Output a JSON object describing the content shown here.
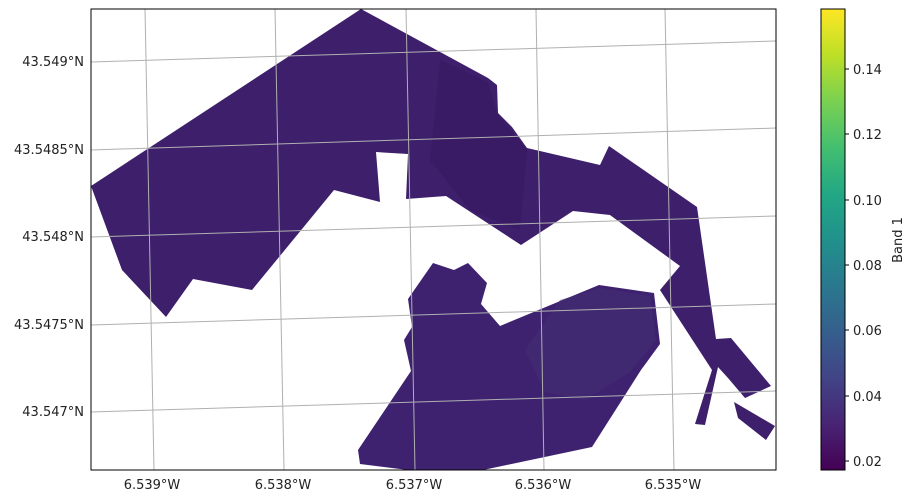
{
  "map": {
    "projection": "PlateCarree",
    "lon_ticks": [
      "6.539°W",
      "6.538°W",
      "6.537°W",
      "6.536°W",
      "6.535°W"
    ],
    "lat_ticks": [
      "43.549°N",
      "43.5485°N",
      "43.548°N",
      "43.5475°N",
      "43.547°N"
    ],
    "gridlines": true,
    "raster": {
      "name": "Band 1",
      "dominant_color": "#3d1f6b",
      "nodata_color": "#ffffff"
    }
  },
  "colorbar": {
    "label": "Band 1",
    "colormap": "viridis",
    "range": [
      0.017,
      0.158
    ],
    "ticks": [
      "0.02",
      "0.04",
      "0.06",
      "0.08",
      "0.10",
      "0.12",
      "0.14"
    ],
    "orientation": "vertical",
    "placement": "right"
  }
}
